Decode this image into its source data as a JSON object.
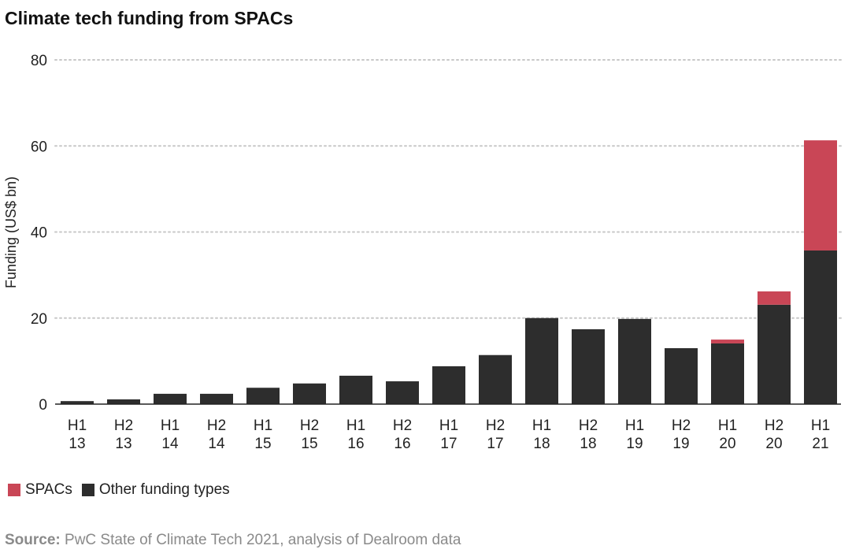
{
  "chart_data": {
    "type": "bar",
    "stacked": true,
    "title": "Climate tech funding from SPACs",
    "xlabel": "",
    "ylabel": "Funding (US$ bn)",
    "ylim": [
      0,
      80
    ],
    "yticks": [
      "0",
      "20",
      "40",
      "60",
      "80"
    ],
    "grid": true,
    "legend_position": "bottom-left",
    "categories": [
      [
        "H1",
        "13"
      ],
      [
        "H2",
        "13"
      ],
      [
        "H1",
        "14"
      ],
      [
        "H2",
        "14"
      ],
      [
        "H1",
        "15"
      ],
      [
        "H2",
        "15"
      ],
      [
        "H1",
        "16"
      ],
      [
        "H2",
        "16"
      ],
      [
        "H1",
        "17"
      ],
      [
        "H2",
        "17"
      ],
      [
        "H1",
        "18"
      ],
      [
        "H2",
        "18"
      ],
      [
        "H1",
        "19"
      ],
      [
        "H2",
        "19"
      ],
      [
        "H1",
        "20"
      ],
      [
        "H2",
        "20"
      ],
      [
        "H1",
        "21"
      ]
    ],
    "series": [
      {
        "name": "Other funding types",
        "color": "#2d2d2d",
        "values": [
          0.7,
          1.1,
          2.4,
          2.4,
          3.8,
          4.8,
          6.6,
          5.3,
          8.8,
          11.4,
          20.0,
          17.4,
          19.8,
          13.0,
          14.1,
          23.1,
          35.7
        ]
      },
      {
        "name": "SPACs",
        "color": "#c94656",
        "values": [
          0,
          0,
          0,
          0,
          0,
          0,
          0,
          0,
          0,
          0,
          0,
          0,
          0,
          0,
          0.9,
          3.1,
          25.6
        ]
      }
    ]
  },
  "legend": {
    "spacs": "SPACs",
    "other": "Other funding types"
  },
  "source": {
    "label": "Source:",
    "text": "PwC State of Climate Tech 2021, analysis of Dealroom data"
  }
}
